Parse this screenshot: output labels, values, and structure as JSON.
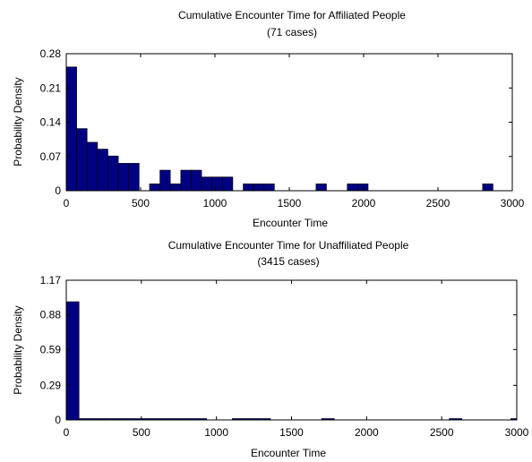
{
  "chart_data": [
    {
      "type": "bar",
      "title": "Cumulative Encounter Time for Affiliated People",
      "subtitle": "(71 cases)",
      "xlabel": "Encounter Time",
      "ylabel": "Probability Density",
      "xlim": [
        0,
        3000
      ],
      "ylim": [
        0,
        0.28
      ],
      "xticks": [
        0,
        500,
        1000,
        1500,
        2000,
        2500,
        3000
      ],
      "xtick_labels": [
        "0",
        "500",
        "1000",
        "1500",
        "2000",
        "2500",
        "3000"
      ],
      "yticks": [
        0,
        0.07,
        0.14,
        0.21,
        0.28
      ],
      "ytick_labels": [
        "0",
        "0.07",
        "0.14",
        "0.21",
        "0.28"
      ],
      "bar_color": "#000080",
      "grid": false,
      "bins": [
        {
          "x0": 0,
          "x1": 70,
          "value": 0.253
        },
        {
          "x0": 70,
          "x1": 140,
          "value": 0.127
        },
        {
          "x0": 140,
          "x1": 210,
          "value": 0.099
        },
        {
          "x0": 210,
          "x1": 280,
          "value": 0.085
        },
        {
          "x0": 280,
          "x1": 350,
          "value": 0.071
        },
        {
          "x0": 350,
          "x1": 420,
          "value": 0.056
        },
        {
          "x0": 420,
          "x1": 490,
          "value": 0.056
        },
        {
          "x0": 560,
          "x1": 630,
          "value": 0.014
        },
        {
          "x0": 630,
          "x1": 700,
          "value": 0.042
        },
        {
          "x0": 700,
          "x1": 770,
          "value": 0.014
        },
        {
          "x0": 770,
          "x1": 840,
          "value": 0.042
        },
        {
          "x0": 840,
          "x1": 910,
          "value": 0.042
        },
        {
          "x0": 910,
          "x1": 980,
          "value": 0.028
        },
        {
          "x0": 980,
          "x1": 1050,
          "value": 0.028
        },
        {
          "x0": 1050,
          "x1": 1120,
          "value": 0.028
        },
        {
          "x0": 1190,
          "x1": 1260,
          "value": 0.014
        },
        {
          "x0": 1260,
          "x1": 1330,
          "value": 0.014
        },
        {
          "x0": 1330,
          "x1": 1400,
          "value": 0.014
        },
        {
          "x0": 1680,
          "x1": 1750,
          "value": 0.014
        },
        {
          "x0": 1890,
          "x1": 1960,
          "value": 0.014
        },
        {
          "x0": 1960,
          "x1": 2030,
          "value": 0.014
        },
        {
          "x0": 2800,
          "x1": 2870,
          "value": 0.014
        }
      ]
    },
    {
      "type": "bar",
      "title": "Cumulative Encounter Time for Unaffiliated People",
      "subtitle": "(3415 cases)",
      "xlabel": "Encounter Time",
      "ylabel": "Probability Density",
      "xlim": [
        0,
        3000
      ],
      "ylim": [
        0,
        1.17
      ],
      "xticks": [
        0,
        500,
        1000,
        1500,
        2000,
        2500,
        3000
      ],
      "xtick_labels": [
        "0",
        "500",
        "1000",
        "1500",
        "2000",
        "2500",
        "3000"
      ],
      "yticks": [
        0,
        0.29,
        0.59,
        0.88,
        1.17
      ],
      "ytick_labels": [
        "0",
        "0.29",
        "0.59",
        "0.88",
        "1.17"
      ],
      "bar_color": "#000080",
      "grid": false,
      "bins": [
        {
          "x0": 0,
          "x1": 85,
          "value": 0.99
        },
        {
          "x0": 85,
          "x1": 170,
          "value": 0.005
        },
        {
          "x0": 170,
          "x1": 255,
          "value": 0.004
        },
        {
          "x0": 255,
          "x1": 340,
          "value": 0.003
        },
        {
          "x0": 340,
          "x1": 425,
          "value": 0.003
        },
        {
          "x0": 425,
          "x1": 510,
          "value": 0.002
        },
        {
          "x0": 510,
          "x1": 595,
          "value": 0.002
        },
        {
          "x0": 595,
          "x1": 680,
          "value": 0.002
        },
        {
          "x0": 680,
          "x1": 765,
          "value": 0.002
        },
        {
          "x0": 765,
          "x1": 850,
          "value": 0.002
        },
        {
          "x0": 850,
          "x1": 935,
          "value": 0.002
        },
        {
          "x0": 1105,
          "x1": 1190,
          "value": 0.002
        },
        {
          "x0": 1190,
          "x1": 1275,
          "value": 0.002
        },
        {
          "x0": 1275,
          "x1": 1360,
          "value": 0.002
        },
        {
          "x0": 1700,
          "x1": 1785,
          "value": 0.002
        },
        {
          "x0": 2550,
          "x1": 2635,
          "value": 0.002
        },
        {
          "x0": 2960,
          "x1": 3000,
          "value": 0.002
        }
      ]
    }
  ]
}
